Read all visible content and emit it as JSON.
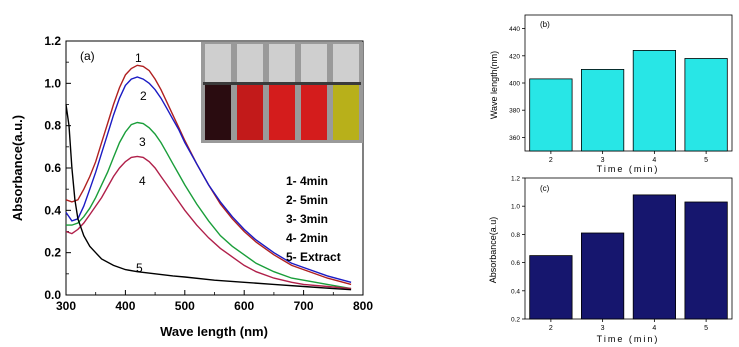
{
  "chart_data": [
    {
      "panel": "(a)",
      "type": "line",
      "xlabel": "Wave length (nm)",
      "ylabel": "Absorbance(a.u.)",
      "xlim": [
        300,
        800
      ],
      "ylim": [
        0.0,
        1.2
      ],
      "xticks": [
        "300",
        "400",
        "500",
        "600",
        "700",
        "800"
      ],
      "yticks": [
        "0.0",
        "0.2",
        "0.4",
        "0.6",
        "0.8",
        "1.0",
        "1.2"
      ],
      "legend": [
        "1- 4min",
        "2- 5min",
        "3- 3min",
        "4- 2min",
        "5- Extract"
      ],
      "legend_position": "center-right",
      "series": [
        {
          "name": "1",
          "color": "#b02020",
          "x": [
            300,
            310,
            320,
            330,
            340,
            350,
            360,
            370,
            380,
            390,
            400,
            410,
            420,
            430,
            440,
            450,
            460,
            470,
            480,
            490,
            500,
            520,
            540,
            560,
            580,
            600,
            620,
            650,
            680,
            700,
            740,
            780
          ],
          "y": [
            0.45,
            0.44,
            0.45,
            0.5,
            0.56,
            0.63,
            0.72,
            0.81,
            0.9,
            0.98,
            1.04,
            1.07,
            1.085,
            1.08,
            1.06,
            1.02,
            0.97,
            0.91,
            0.85,
            0.79,
            0.73,
            0.62,
            0.52,
            0.43,
            0.36,
            0.3,
            0.25,
            0.19,
            0.14,
            0.12,
            0.08,
            0.05
          ]
        },
        {
          "name": "2",
          "color": "#1b1bc4",
          "x": [
            300,
            310,
            320,
            330,
            340,
            350,
            360,
            370,
            380,
            390,
            400,
            410,
            420,
            430,
            440,
            450,
            460,
            470,
            480,
            490,
            500,
            520,
            540,
            560,
            580,
            600,
            620,
            650,
            680,
            700,
            740,
            780
          ],
          "y": [
            0.39,
            0.35,
            0.36,
            0.42,
            0.5,
            0.58,
            0.67,
            0.76,
            0.85,
            0.93,
            0.99,
            1.02,
            1.03,
            1.02,
            1.0,
            0.97,
            0.93,
            0.88,
            0.83,
            0.78,
            0.72,
            0.62,
            0.52,
            0.44,
            0.37,
            0.31,
            0.26,
            0.2,
            0.15,
            0.13,
            0.09,
            0.06
          ]
        },
        {
          "name": "3",
          "color": "#1a9e3a",
          "x": [
            300,
            310,
            320,
            330,
            340,
            350,
            360,
            370,
            380,
            390,
            400,
            410,
            420,
            430,
            440,
            450,
            460,
            470,
            480,
            490,
            500,
            520,
            540,
            560,
            580,
            600,
            620,
            650,
            680,
            700,
            740,
            780
          ],
          "y": [
            0.33,
            0.33,
            0.34,
            0.37,
            0.41,
            0.46,
            0.52,
            0.58,
            0.65,
            0.72,
            0.77,
            0.805,
            0.815,
            0.81,
            0.79,
            0.76,
            0.72,
            0.67,
            0.62,
            0.57,
            0.52,
            0.43,
            0.35,
            0.28,
            0.23,
            0.19,
            0.15,
            0.11,
            0.08,
            0.07,
            0.05,
            0.03
          ]
        },
        {
          "name": "4",
          "color": "#b0204a",
          "x": [
            300,
            310,
            320,
            330,
            340,
            350,
            360,
            370,
            380,
            390,
            400,
            410,
            420,
            430,
            440,
            450,
            460,
            470,
            480,
            490,
            500,
            520,
            540,
            560,
            580,
            600,
            620,
            650,
            680,
            700,
            740,
            780
          ],
          "y": [
            0.3,
            0.29,
            0.31,
            0.34,
            0.38,
            0.42,
            0.46,
            0.51,
            0.56,
            0.6,
            0.63,
            0.65,
            0.655,
            0.65,
            0.63,
            0.6,
            0.56,
            0.52,
            0.48,
            0.44,
            0.4,
            0.33,
            0.27,
            0.22,
            0.18,
            0.14,
            0.11,
            0.08,
            0.06,
            0.05,
            0.04,
            0.03
          ]
        },
        {
          "name": "5",
          "color": "#000000",
          "x": [
            300,
            305,
            310,
            315,
            320,
            330,
            340,
            350,
            360,
            380,
            400,
            420,
            450,
            480,
            500,
            550,
            600,
            650,
            700,
            750,
            780
          ],
          "y": [
            0.9,
            0.8,
            0.6,
            0.45,
            0.36,
            0.28,
            0.23,
            0.2,
            0.17,
            0.14,
            0.12,
            0.11,
            0.1,
            0.09,
            0.085,
            0.07,
            0.06,
            0.05,
            0.04,
            0.03,
            0.025
          ]
        }
      ],
      "curve_labels": [
        "1",
        "2",
        "3",
        "4",
        "5"
      ]
    },
    {
      "panel": "(b)",
      "type": "bar",
      "xlabel": "Time (min)",
      "ylabel": "Wave length(nm)",
      "categories": [
        "2",
        "3",
        "4",
        "5"
      ],
      "values": [
        403,
        410,
        424,
        418
      ],
      "ylim": [
        350,
        450
      ],
      "yticks": [
        "360",
        "380",
        "400",
        "420",
        "440"
      ],
      "bar_color": "#28e6e6"
    },
    {
      "panel": "(c)",
      "type": "bar",
      "xlabel": "Time (min)",
      "ylabel": "Absorbance(a.u)",
      "categories": [
        "2",
        "3",
        "4",
        "5"
      ],
      "values": [
        0.65,
        0.81,
        1.08,
        1.03
      ],
      "ylim": [
        0.2,
        1.2
      ],
      "yticks": [
        "0.2",
        "0.4",
        "0.6",
        "0.8",
        "1.0",
        "1.2"
      ],
      "bar_color": "#16166e"
    }
  ],
  "inset": {
    "description_colors": [
      "#2a0c10",
      "#c21a1a",
      "#d41c1c",
      "#d41c1c",
      "#b8b01a"
    ]
  }
}
